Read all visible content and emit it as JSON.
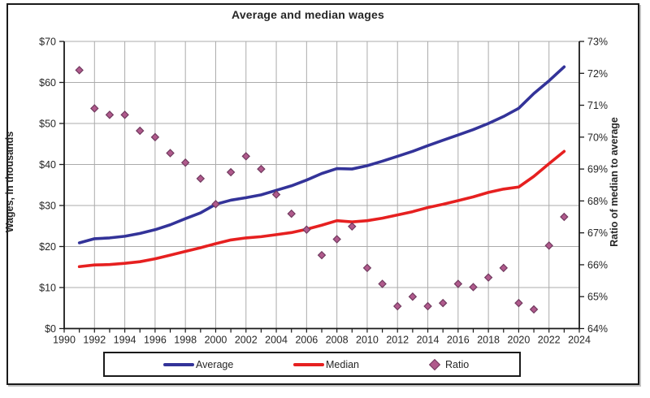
{
  "figure": {
    "title": "Average and median wages"
  },
  "chart_data": {
    "type": "line",
    "title": "Average and median wages",
    "x": [
      1991,
      1992,
      1993,
      1994,
      1995,
      1996,
      1997,
      1998,
      1999,
      2000,
      2001,
      2002,
      2003,
      2004,
      2005,
      2006,
      2007,
      2008,
      2009,
      2010,
      2011,
      2012,
      2013,
      2014,
      2015,
      2016,
      2017,
      2018,
      2019,
      2020,
      2021,
      2022,
      2023
    ],
    "series": [
      {
        "name": "Average",
        "kind": "line",
        "axis": "left",
        "color": "#333399",
        "values": [
          20.9,
          21.9,
          22.1,
          22.5,
          23.2,
          24.1,
          25.3,
          26.8,
          28.2,
          30.3,
          31.3,
          31.9,
          32.6,
          33.7,
          34.8,
          36.2,
          37.8,
          39.0,
          38.9,
          39.7,
          40.8,
          42.0,
          43.2,
          44.6,
          45.9,
          47.2,
          48.5,
          50.0,
          51.7,
          53.7,
          57.3,
          60.4,
          63.8
        ]
      },
      {
        "name": "Median",
        "kind": "line",
        "axis": "left",
        "color": "#e62020",
        "values": [
          15.1,
          15.5,
          15.6,
          15.9,
          16.3,
          17.0,
          17.9,
          18.8,
          19.7,
          20.7,
          21.6,
          22.1,
          22.4,
          22.9,
          23.4,
          24.2,
          25.2,
          26.3,
          26.0,
          26.3,
          26.9,
          27.7,
          28.5,
          29.5,
          30.3,
          31.2,
          32.1,
          33.2,
          34.0,
          34.5,
          37.1,
          40.2,
          43.2
        ]
      },
      {
        "name": "Ratio",
        "kind": "scatter",
        "marker": "diamond",
        "axis": "right",
        "color": "#b05a8c",
        "marker_stroke": "#713a5f",
        "values": [
          72.1,
          70.9,
          70.7,
          70.7,
          70.2,
          70.0,
          69.5,
          69.2,
          68.7,
          67.9,
          68.9,
          69.4,
          69.0,
          68.2,
          67.6,
          67.1,
          66.3,
          66.8,
          67.2,
          65.9,
          65.4,
          64.7,
          65.0,
          64.7,
          64.8,
          65.4,
          65.3,
          65.6,
          65.9,
          64.8,
          64.6,
          66.6,
          67.5
        ]
      }
    ],
    "left_axis": {
      "label": "Wages, in thousands",
      "min": 0,
      "max": 70,
      "tick_step": 10,
      "tick_labels": [
        "$0",
        "$10",
        "$20",
        "$30",
        "$40",
        "$50",
        "$60",
        "$70"
      ]
    },
    "right_axis": {
      "label": "Ratio of median to average",
      "min": 64,
      "max": 73,
      "tick_step": 1,
      "tick_labels": [
        "64%",
        "65%",
        "66%",
        "67%",
        "68%",
        "69%",
        "70%",
        "71%",
        "72%",
        "73%"
      ]
    },
    "x_axis": {
      "min": 1990,
      "max": 2024,
      "tick_step": 2,
      "tick_labels": [
        "1990",
        "1992",
        "1994",
        "1996",
        "1998",
        "2000",
        "2002",
        "2004",
        "2006",
        "2008",
        "2010",
        "2012",
        "2014",
        "2016",
        "2018",
        "2020",
        "2022",
        "2024"
      ]
    },
    "grid": true,
    "gridline_color": "#ababab",
    "axis_color": "#1a1a1a",
    "text_color": "#262626",
    "legend": {
      "position": "bottom",
      "entries": [
        "Average",
        "Median",
        "Ratio"
      ]
    }
  }
}
